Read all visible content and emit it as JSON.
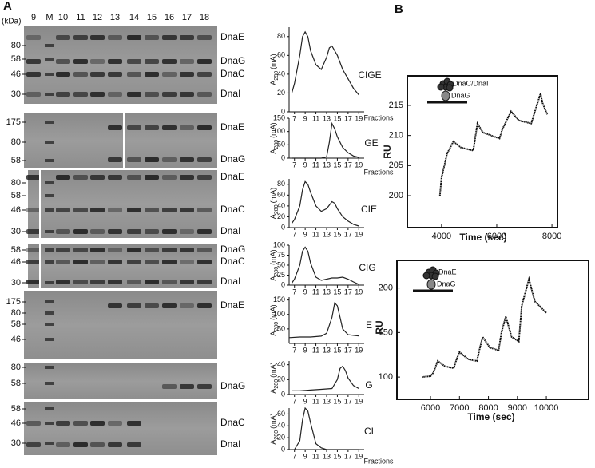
{
  "panel_a": {
    "label": "A",
    "kda": "(kDa)",
    "lanes": [
      "9",
      "M",
      "10",
      "11",
      "12",
      "13",
      "14",
      "15",
      "16",
      "17",
      "18"
    ],
    "gels": [
      {
        "markers": [
          80,
          58,
          46,
          30
        ],
        "bands": [
          "DnaE",
          "DnaG",
          "DnaC",
          "DnaI"
        ]
      },
      {
        "markers": [
          175,
          80,
          58
        ],
        "bands": [
          "DnaE",
          "DnaG"
        ]
      },
      {
        "markers": [
          80,
          58,
          46,
          30
        ],
        "bands": [
          "DnaE",
          "DnaC",
          "DnaI"
        ]
      },
      {
        "markers": [
          58,
          46,
          30
        ],
        "bands": [
          "DnaG",
          "DnaC",
          "DnaI"
        ]
      },
      {
        "markers": [
          175,
          80,
          58,
          46
        ],
        "bands": [
          "DnaE"
        ]
      },
      {
        "markers": [
          80,
          58
        ],
        "bands": [
          "DnaG"
        ]
      },
      {
        "markers": [
          58,
          46,
          30
        ],
        "bands": [
          "DnaC",
          "DnaI"
        ]
      }
    ]
  },
  "panel_b": {
    "label": "B"
  },
  "chart_data": [
    {
      "type": "line",
      "annotation": "CIGE",
      "x_label": "Fractions",
      "y_label": {
        "symbol": "A",
        "subscript": "280",
        "unit": "(mA)"
      },
      "x": [
        6.5,
        7,
        8,
        8.5,
        9,
        9.5,
        10,
        11,
        12,
        13,
        13.5,
        14,
        15,
        16,
        17,
        18,
        19
      ],
      "values": [
        20,
        30,
        60,
        80,
        85,
        80,
        65,
        50,
        45,
        58,
        68,
        70,
        60,
        45,
        35,
        25,
        18
      ],
      "xlim": [
        6,
        20
      ],
      "ylim": [
        0,
        90
      ],
      "xticks": [
        7,
        9,
        11,
        13,
        15,
        17,
        19
      ],
      "yticks": [
        0,
        20,
        40,
        60,
        80
      ],
      "color": "#222222"
    },
    {
      "type": "line",
      "annotation": "GE",
      "x_label": "Fractions",
      "y_label": {
        "symbol": "A",
        "subscript": "280",
        "unit": "(mA)"
      },
      "x": [
        6.5,
        8,
        10,
        12,
        13,
        13.5,
        14,
        14.5,
        15,
        16,
        17,
        18,
        19
      ],
      "values": [
        0,
        0,
        0,
        0,
        5,
        60,
        130,
        110,
        80,
        40,
        20,
        8,
        3
      ],
      "xlim": [
        6,
        20
      ],
      "ylim": [
        0,
        150
      ],
      "xticks": [
        7,
        9,
        11,
        13,
        15,
        17,
        19
      ],
      "yticks": [
        0,
        50,
        100,
        150
      ],
      "color": "#222222"
    },
    {
      "type": "line",
      "annotation": "CIE",
      "y_label": {
        "symbol": "A",
        "subscript": "280",
        "unit": "(mA)"
      },
      "x": [
        6.5,
        7,
        8,
        8.5,
        9,
        9.5,
        10,
        11,
        12,
        13,
        14,
        14.5,
        15,
        16,
        17,
        18,
        19
      ],
      "values": [
        8,
        15,
        40,
        70,
        85,
        80,
        65,
        40,
        30,
        35,
        48,
        45,
        35,
        20,
        12,
        6,
        3
      ],
      "xlim": [
        6,
        20
      ],
      "ylim": [
        0,
        90
      ],
      "xticks": [
        7,
        9,
        11,
        13,
        15,
        17,
        19
      ],
      "yticks": [
        0,
        20,
        40,
        60,
        80
      ],
      "color": "#222222"
    },
    {
      "type": "line",
      "annotation": "CIG",
      "y_label": {
        "symbol": "A",
        "subscript": "280",
        "unit": "(mA)"
      },
      "x": [
        6.5,
        7,
        8,
        8.5,
        9,
        9.5,
        10,
        11,
        12,
        13,
        14,
        15,
        16,
        17,
        18,
        19
      ],
      "values": [
        5,
        15,
        50,
        85,
        95,
        85,
        55,
        20,
        12,
        15,
        18,
        18,
        20,
        15,
        8,
        2
      ],
      "xlim": [
        6,
        20
      ],
      "ylim": [
        0,
        100
      ],
      "xticks": [
        7,
        9,
        11,
        13,
        15,
        17,
        19
      ],
      "yticks": [
        0,
        25,
        50,
        75,
        100
      ],
      "color": "#222222"
    },
    {
      "type": "line",
      "annotation": "E",
      "y_label": {
        "symbol": "A",
        "subscript": "280",
        "unit": "(mA)"
      },
      "x": [
        6,
        8,
        10,
        12,
        13,
        14,
        14.5,
        15,
        15.5,
        16,
        17,
        18,
        19
      ],
      "values": [
        20,
        22,
        22,
        25,
        35,
        90,
        140,
        130,
        90,
        50,
        30,
        28,
        26
      ],
      "xlim": [
        6,
        20
      ],
      "ylim": [
        0,
        160
      ],
      "xticks": [
        7,
        9,
        11,
        13,
        15,
        17,
        19
      ],
      "yticks": [
        50,
        100,
        150
      ],
      "color": "#222222"
    },
    {
      "type": "line",
      "annotation": "G",
      "y_label": {
        "symbol": "A",
        "subscript": "280",
        "unit": "(mA)"
      },
      "x": [
        6.5,
        8,
        10,
        12,
        14,
        15,
        15.5,
        16,
        16.5,
        17,
        18,
        19
      ],
      "values": [
        5,
        5,
        6,
        7,
        8,
        20,
        35,
        38,
        32,
        22,
        12,
        8
      ],
      "xlim": [
        6,
        20
      ],
      "ylim": [
        0,
        45
      ],
      "xticks": [
        7,
        9,
        11,
        13,
        15,
        17,
        19
      ],
      "yticks": [
        0,
        20,
        40
      ],
      "color": "#222222"
    },
    {
      "type": "line",
      "annotation": "CI",
      "x_label": "Fractions",
      "y_label": {
        "symbol": "A",
        "subscript": "280",
        "unit": "(mA)"
      },
      "x": [
        7,
        8,
        8.5,
        9,
        9.5,
        10,
        11,
        12,
        13,
        15,
        17,
        19
      ],
      "values": [
        0,
        15,
        50,
        70,
        65,
        45,
        10,
        3,
        0,
        0,
        0,
        0
      ],
      "xlim": [
        6,
        20
      ],
      "ylim": [
        0,
        70
      ],
      "xticks": [
        7,
        9,
        11,
        13,
        15,
        17,
        19
      ],
      "yticks": [
        0,
        20,
        40,
        60
      ],
      "color": "#222222"
    },
    {
      "type": "spr",
      "x_label": "Time (sec)",
      "y_label": "RU",
      "icon_labels": [
        "DnaC/DnaI",
        "DnaG"
      ],
      "x": [
        3940,
        4000,
        4200,
        4430,
        4700,
        5150,
        5200,
        5300,
        5500,
        6100,
        6200,
        6520,
        6800,
        7250,
        7350,
        7590,
        7650,
        7830
      ],
      "values": [
        200,
        203,
        207,
        209,
        208,
        207.5,
        209,
        212,
        210.5,
        209.5,
        211,
        214,
        212.5,
        212,
        213.5,
        217,
        215.5,
        213.5
      ],
      "xlim": [
        2760,
        8200
      ],
      "ylim": [
        194.7,
        219.9
      ],
      "xticks": [
        4000,
        6000,
        8000
      ],
      "yticks": [
        200,
        205,
        210,
        215
      ],
      "color": "#111111"
    },
    {
      "type": "spr",
      "x_label": "Time (sec)",
      "y_label": "RU",
      "icon_labels": [
        "DnaE",
        "DnaG"
      ],
      "x": [
        5700,
        6000,
        6100,
        6250,
        6500,
        6800,
        6900,
        7000,
        7300,
        7600,
        7700,
        7800,
        8050,
        8350,
        8450,
        8600,
        8800,
        9050,
        9150,
        9400,
        9600,
        10000
      ],
      "values": [
        100,
        101,
        105,
        118,
        112,
        110,
        120,
        128,
        120,
        118,
        132,
        145,
        133,
        130,
        150,
        168,
        145,
        140,
        180,
        210,
        185,
        172
      ],
      "xlim": [
        4840,
        11460
      ],
      "ylim": [
        75,
        231
      ],
      "xticks": [
        6000,
        7000,
        8000,
        9000,
        10000
      ],
      "yticks": [
        100,
        150,
        200
      ],
      "color": "#111111"
    }
  ]
}
